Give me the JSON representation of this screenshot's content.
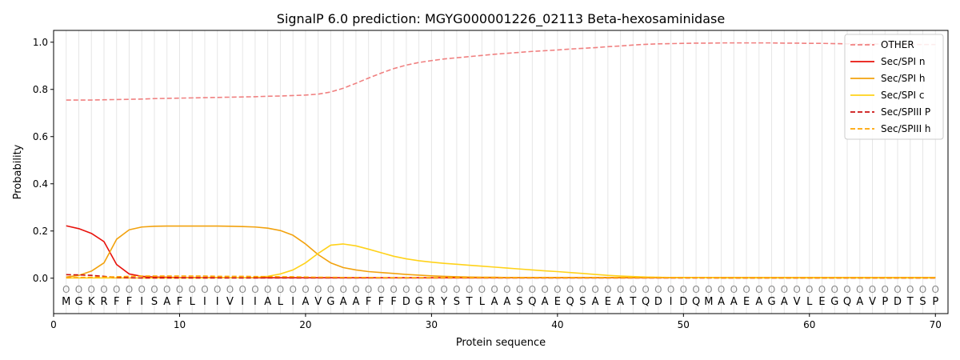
{
  "chart_data": {
    "type": "line",
    "title": "SignalP 6.0 prediction: MGYG000001226_02113 Beta-hexosaminidase",
    "xlabel": "Protein sequence",
    "ylabel": "Probability",
    "xlim": [
      0,
      71
    ],
    "ylim": [
      -0.15,
      1.05
    ],
    "xticks": [
      0,
      10,
      20,
      30,
      40,
      50,
      60,
      70
    ],
    "yticks": [
      0.0,
      0.2,
      0.4,
      0.6,
      0.8,
      1.0
    ],
    "grid": "vertical lines at each residue",
    "legend_position": "top-right",
    "sequence": [
      "M",
      "G",
      "K",
      "R",
      "F",
      "F",
      "I",
      "S",
      "A",
      "F",
      "L",
      "I",
      "I",
      "V",
      "I",
      "I",
      "A",
      "L",
      "I",
      "A",
      "V",
      "G",
      "A",
      "A",
      "F",
      "F",
      "F",
      "D",
      "G",
      "R",
      "Y",
      "S",
      "T",
      "L",
      "A",
      "A",
      "S",
      "Q",
      "A",
      "E",
      "Q",
      "S",
      "A",
      "E",
      "A",
      "T",
      "Q",
      "D",
      "I",
      "D",
      "Q",
      "M",
      "A",
      "A",
      "E",
      "A",
      "G",
      "A",
      "V",
      "L",
      "E",
      "G",
      "Q",
      "A",
      "V",
      "P",
      "D",
      "T",
      "S",
      "P"
    ],
    "position_marker": "O",
    "marker_y": -0.045,
    "series": [
      {
        "name": "OTHER",
        "color": "#f08080",
        "dash": "dashed",
        "values": [
          0.755,
          0.755,
          0.755,
          0.756,
          0.757,
          0.758,
          0.759,
          0.761,
          0.762,
          0.763,
          0.764,
          0.765,
          0.766,
          0.767,
          0.768,
          0.769,
          0.771,
          0.772,
          0.774,
          0.776,
          0.78,
          0.789,
          0.805,
          0.826,
          0.848,
          0.869,
          0.888,
          0.903,
          0.914,
          0.922,
          0.929,
          0.934,
          0.939,
          0.944,
          0.949,
          0.953,
          0.957,
          0.961,
          0.964,
          0.967,
          0.971,
          0.974,
          0.977,
          0.981,
          0.984,
          0.988,
          0.991,
          0.993,
          0.994,
          0.995,
          0.996,
          0.996,
          0.997,
          0.997,
          0.997,
          0.997,
          0.997,
          0.996,
          0.996,
          0.995,
          0.995,
          0.994,
          0.993,
          0.993,
          0.992,
          0.992,
          0.991,
          0.991,
          0.99,
          0.99
        ]
      },
      {
        "name": "Sec/SPI n",
        "color": "#e8120c",
        "dash": "solid",
        "values": [
          0.222,
          0.21,
          0.19,
          0.155,
          0.058,
          0.018,
          0.008,
          0.005,
          0.004,
          0.003,
          0.003,
          0.003,
          0.003,
          0.002,
          0.002,
          0.002,
          0.002,
          0.002,
          0.002,
          0.002,
          0.002,
          0.002,
          0.002,
          0.002,
          0.002,
          0.002,
          0.002,
          0.002,
          0.002,
          0.002,
          0.002,
          0.002,
          0.002,
          0.002,
          0.002,
          0.002,
          0.002,
          0.002,
          0.002,
          0.002,
          0.002,
          0.002,
          0.002,
          0.002,
          0.002,
          0.002,
          0.002,
          0.002,
          0.002,
          0.002,
          0.002,
          0.002,
          0.002,
          0.002,
          0.002,
          0.002,
          0.002,
          0.002,
          0.002,
          0.002,
          0.002,
          0.002,
          0.002,
          0.002,
          0.002,
          0.002,
          0.002,
          0.002,
          0.002,
          0.002
        ]
      },
      {
        "name": "Sec/SPI h",
        "color": "#f2a20e",
        "dash": "solid",
        "values": [
          0.005,
          0.012,
          0.03,
          0.065,
          0.165,
          0.205,
          0.217,
          0.22,
          0.221,
          0.221,
          0.221,
          0.221,
          0.221,
          0.22,
          0.219,
          0.217,
          0.212,
          0.202,
          0.182,
          0.145,
          0.1,
          0.065,
          0.045,
          0.035,
          0.028,
          0.024,
          0.02,
          0.016,
          0.013,
          0.01,
          0.008,
          0.006,
          0.005,
          0.004,
          0.004,
          0.003,
          0.003,
          0.003,
          0.003,
          0.003,
          0.003,
          0.003,
          0.003,
          0.003,
          0.003,
          0.003,
          0.003,
          0.003,
          0.003,
          0.003,
          0.003,
          0.003,
          0.003,
          0.003,
          0.003,
          0.003,
          0.003,
          0.003,
          0.003,
          0.003,
          0.003,
          0.003,
          0.003,
          0.003,
          0.003,
          0.003,
          0.003,
          0.003,
          0.003,
          0.003
        ]
      },
      {
        "name": "Sec/SPI c",
        "color": "#ffd21a",
        "dash": "solid",
        "values": [
          0.001,
          0.001,
          0.001,
          0.001,
          0.001,
          0.001,
          0.001,
          0.001,
          0.001,
          0.001,
          0.001,
          0.001,
          0.002,
          0.002,
          0.002,
          0.003,
          0.008,
          0.018,
          0.035,
          0.065,
          0.105,
          0.14,
          0.145,
          0.137,
          0.123,
          0.108,
          0.093,
          0.082,
          0.074,
          0.068,
          0.063,
          0.059,
          0.055,
          0.051,
          0.047,
          0.043,
          0.039,
          0.035,
          0.031,
          0.028,
          0.024,
          0.02,
          0.016,
          0.012,
          0.009,
          0.007,
          0.005,
          0.004,
          0.003,
          0.002,
          0.002,
          0.002,
          0.001,
          0.001,
          0.001,
          0.001,
          0.001,
          0.001,
          0.001,
          0.001,
          0.001,
          0.001,
          0.001,
          0.001,
          0.001,
          0.001,
          0.001,
          0.001,
          0.001,
          0.001
        ]
      },
      {
        "name": "Sec/SPIII P",
        "color": "#cc1111",
        "dash": "dashed",
        "values": [
          0.015,
          0.014,
          0.012,
          0.008,
          0.003,
          0.002,
          0.001,
          0.001,
          0.001,
          0.001,
          0.001,
          0.001,
          0.001,
          0.001,
          0.001,
          0.001,
          0.001,
          0.001,
          0.001,
          0.001,
          0.001,
          0.001,
          0.001,
          0.001,
          0.001,
          0.001,
          0.001,
          0.001,
          0.001,
          0.001,
          0.001,
          0.001,
          0.001,
          0.001,
          0.001,
          0.001,
          0.001,
          0.001,
          0.001,
          0.001,
          0.001,
          0.001,
          0.001,
          0.001,
          0.001,
          0.001,
          0.001,
          0.001,
          0.001,
          0.001,
          0.001,
          0.001,
          0.001,
          0.001,
          0.001,
          0.001,
          0.001,
          0.001,
          0.001,
          0.001,
          0.001,
          0.001,
          0.001,
          0.001,
          0.001,
          0.001,
          0.001,
          0.001,
          0.001,
          0.001
        ]
      },
      {
        "name": "Sec/SPIII h",
        "color": "#ffa500",
        "dash": "dashed",
        "values": [
          0.002,
          0.003,
          0.004,
          0.005,
          0.006,
          0.008,
          0.009,
          0.009,
          0.009,
          0.009,
          0.009,
          0.009,
          0.008,
          0.008,
          0.008,
          0.007,
          0.007,
          0.006,
          0.006,
          0.005,
          0.004,
          0.004,
          0.003,
          0.003,
          0.003,
          0.002,
          0.002,
          0.002,
          0.002,
          0.002,
          0.002,
          0.002,
          0.002,
          0.002,
          0.002,
          0.002,
          0.002,
          0.002,
          0.002,
          0.002,
          0.002,
          0.002,
          0.002,
          0.002,
          0.002,
          0.002,
          0.002,
          0.002,
          0.002,
          0.002,
          0.002,
          0.002,
          0.002,
          0.002,
          0.002,
          0.002,
          0.002,
          0.002,
          0.002,
          0.002,
          0.002,
          0.002,
          0.002,
          0.002,
          0.002,
          0.002,
          0.002,
          0.002,
          0.002,
          0.002
        ]
      }
    ]
  }
}
